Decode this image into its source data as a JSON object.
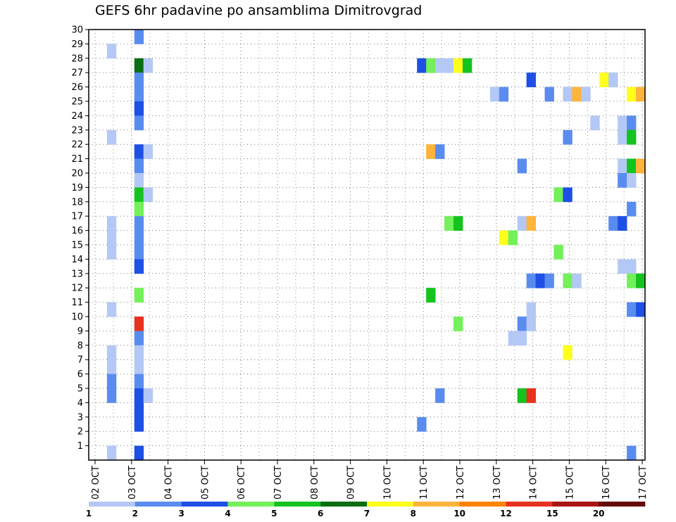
{
  "chart_data": {
    "type": "heatmap",
    "title": "GEFS 6hr padavine po ansamblima Dimitrovgrad",
    "xlabel": "",
    "ylabel": "",
    "x_tick_labels": [
      "02 OCT",
      "03 OCT",
      "04 OCT",
      "05 OCT",
      "06 OCT",
      "07 OCT",
      "08 OCT",
      "09 OCT",
      "10 OCT",
      "11 OCT",
      "12 OCT",
      "13 OCT",
      "14 OCT",
      "15 OCT",
      "16 OCT",
      "17 OCT"
    ],
    "y_tick_labels": [
      "1",
      "2",
      "3",
      "4",
      "5",
      "6",
      "7",
      "8",
      "9",
      "10",
      "11",
      "12",
      "13",
      "14",
      "15",
      "16",
      "17",
      "18",
      "19",
      "20",
      "21",
      "22",
      "23",
      "24",
      "25",
      "26",
      "27",
      "28",
      "29",
      "30"
    ],
    "ylim": [
      0,
      30
    ],
    "grid": true,
    "legend": {
      "placement": "bottom",
      "thresholds": [
        "1",
        "2",
        "3",
        "4",
        "5",
        "6",
        "7",
        "8",
        "10",
        "12",
        "15",
        "20"
      ],
      "colors": [
        "#b4c8f5",
        "#5a8cf0",
        "#1e50e6",
        "#73f05a",
        "#14c31e",
        "#0a6e14",
        "#ffff1e",
        "#ffb43c",
        "#ff8200",
        "#e6321e",
        "#aa1414",
        "#640a0a"
      ]
    },
    "cells": [
      [
        2,
        28,
        1
      ],
      [
        2,
        22,
        1
      ],
      [
        2,
        16,
        1
      ],
      [
        2,
        15,
        1
      ],
      [
        2,
        14,
        1
      ],
      [
        2,
        10,
        1
      ],
      [
        2,
        7,
        1
      ],
      [
        2,
        6,
        1
      ],
      [
        2,
        5,
        2
      ],
      [
        2,
        4,
        2
      ],
      [
        2,
        0,
        1
      ],
      [
        5,
        29,
        2
      ],
      [
        5,
        27,
        6
      ],
      [
        6,
        27,
        1
      ],
      [
        5,
        26,
        2
      ],
      [
        5,
        25,
        2
      ],
      [
        5,
        24,
        3
      ],
      [
        5,
        23,
        2
      ],
      [
        5,
        21,
        3
      ],
      [
        6,
        21,
        1
      ],
      [
        5,
        20,
        2
      ],
      [
        5,
        19,
        1
      ],
      [
        5,
        18,
        5
      ],
      [
        6,
        18,
        1
      ],
      [
        5,
        17,
        4
      ],
      [
        5,
        16,
        2
      ],
      [
        5,
        15,
        2
      ],
      [
        5,
        14,
        2
      ],
      [
        5,
        13,
        3
      ],
      [
        5,
        11,
        4
      ],
      [
        5,
        9,
        10
      ],
      [
        5,
        8,
        2
      ],
      [
        5,
        7,
        1
      ],
      [
        5,
        6,
        1
      ],
      [
        5,
        5,
        2
      ],
      [
        5,
        4,
        3
      ],
      [
        6,
        4,
        1
      ],
      [
        5,
        3,
        3
      ],
      [
        5,
        2,
        3
      ],
      [
        5,
        0,
        3
      ],
      [
        36,
        27,
        3
      ],
      [
        37,
        27,
        4
      ],
      [
        38,
        27,
        1
      ],
      [
        39,
        27,
        1
      ],
      [
        40,
        27,
        7
      ],
      [
        41,
        27,
        5
      ],
      [
        44,
        25,
        1
      ],
      [
        45,
        25,
        2
      ],
      [
        48,
        26,
        3
      ],
      [
        50,
        25,
        2
      ],
      [
        52,
        25,
        1
      ],
      [
        53,
        25,
        8
      ],
      [
        54,
        25,
        1
      ],
      [
        56,
        26,
        7
      ],
      [
        57,
        26,
        1
      ],
      [
        59,
        25,
        7
      ],
      [
        60,
        25,
        8
      ],
      [
        55,
        23,
        1
      ],
      [
        58,
        23,
        1
      ],
      [
        59,
        23,
        2
      ],
      [
        52,
        22,
        2
      ],
      [
        58,
        22,
        1
      ],
      [
        59,
        22,
        5
      ],
      [
        37,
        21,
        8
      ],
      [
        38,
        21,
        2
      ],
      [
        47,
        20,
        2
      ],
      [
        58,
        20,
        1
      ],
      [
        59,
        20,
        5
      ],
      [
        60,
        20,
        8
      ],
      [
        58,
        19,
        2
      ],
      [
        59,
        19,
        1
      ],
      [
        51,
        18,
        4
      ],
      [
        52,
        18,
        3
      ],
      [
        59,
        17,
        2
      ],
      [
        39,
        16,
        4
      ],
      [
        40,
        16,
        5
      ],
      [
        47,
        16,
        1
      ],
      [
        48,
        16,
        8
      ],
      [
        57,
        16,
        2
      ],
      [
        58,
        16,
        3
      ],
      [
        45,
        15,
        7
      ],
      [
        46,
        15,
        4
      ],
      [
        51,
        14,
        4
      ],
      [
        58,
        13,
        1
      ],
      [
        59,
        13,
        1
      ],
      [
        48,
        12,
        2
      ],
      [
        49,
        12,
        3
      ],
      [
        50,
        12,
        2
      ],
      [
        52,
        12,
        4
      ],
      [
        53,
        12,
        1
      ],
      [
        59,
        12,
        4
      ],
      [
        60,
        12,
        5
      ],
      [
        37,
        11,
        5
      ],
      [
        48,
        10,
        1
      ],
      [
        59,
        10,
        2
      ],
      [
        60,
        10,
        3
      ],
      [
        40,
        9,
        4
      ],
      [
        47,
        9,
        2
      ],
      [
        48,
        9,
        1
      ],
      [
        46,
        8,
        1
      ],
      [
        47,
        8,
        1
      ],
      [
        52,
        7,
        7
      ],
      [
        36,
        2,
        2
      ],
      [
        38,
        4,
        2
      ],
      [
        47,
        4,
        5
      ],
      [
        48,
        4,
        10
      ],
      [
        59,
        0,
        2
      ]
    ]
  }
}
